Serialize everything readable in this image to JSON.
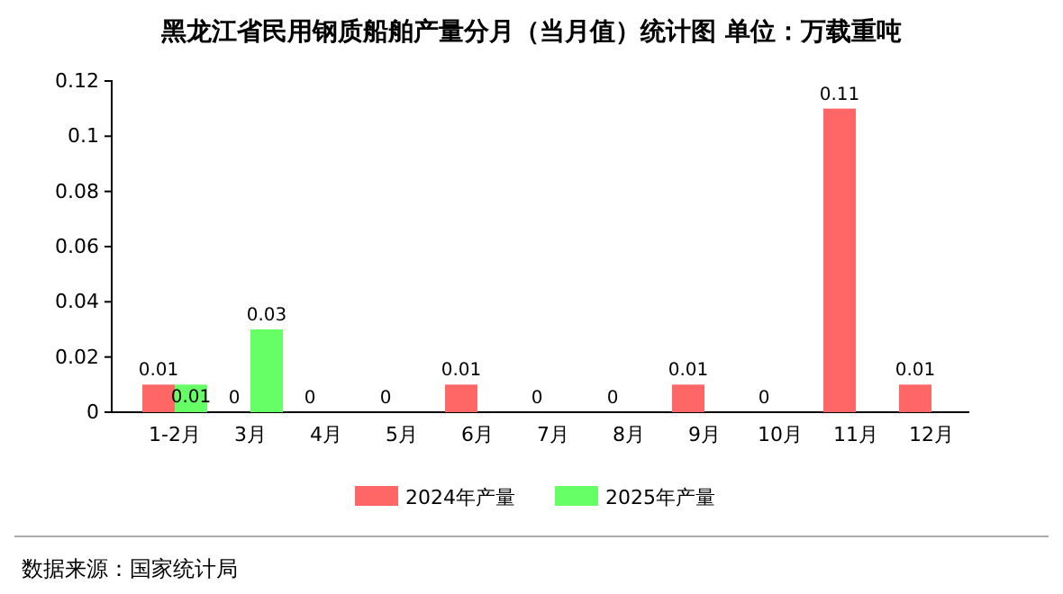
{
  "chart_data": {
    "type": "bar",
    "title": "黑龙江省民用钢质船舶产量分月（当月值）统计图 单位：万载重吨",
    "categories": [
      "1-2月",
      "3月",
      "4月",
      "5月",
      "6月",
      "7月",
      "8月",
      "9月",
      "10月",
      "11月",
      "12月"
    ],
    "series": [
      {
        "name": "2024年产量",
        "color": "#ff6666",
        "values": [
          0.01,
          0,
          0,
          0,
          0.01,
          0,
          0,
          0.01,
          0,
          0.11,
          0.01
        ]
      },
      {
        "name": "2025年产量",
        "color": "#66ff66",
        "values": [
          0.01,
          0.03,
          null,
          null,
          null,
          null,
          null,
          null,
          null,
          null,
          null
        ]
      }
    ],
    "ylim": [
      0,
      0.12
    ],
    "yticks": [
      0,
      0.02,
      0.04,
      0.06,
      0.08,
      0.1,
      0.12
    ],
    "data_labels": true,
    "legend": "bottom",
    "grid": false,
    "annotations": [
      "数据来源：国家统计局"
    ]
  }
}
